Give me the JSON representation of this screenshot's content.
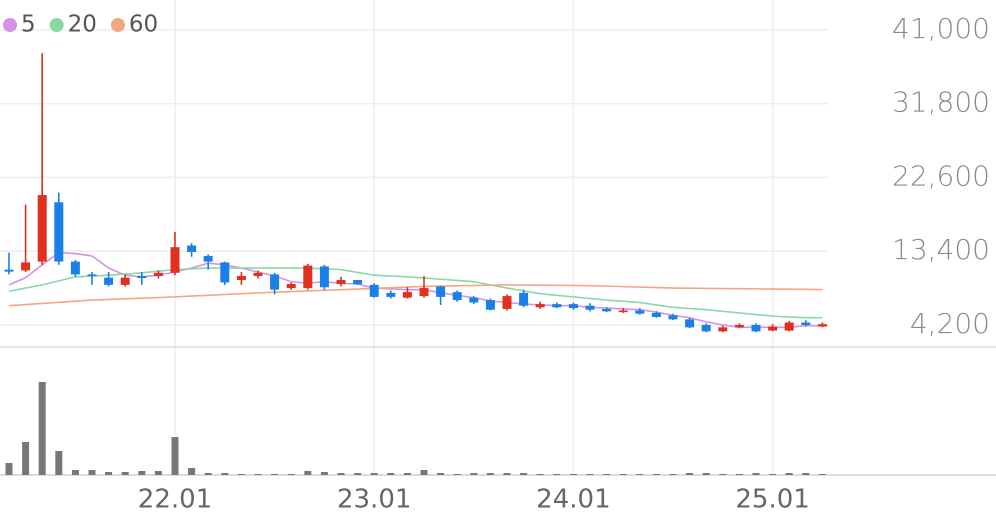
{
  "chart_data": {
    "type": "candlestick",
    "categories": [
      null,
      null,
      null,
      null,
      null,
      null,
      null,
      null,
      null,
      null,
      "22.01",
      null,
      null,
      null,
      null,
      null,
      null,
      null,
      null,
      null,
      null,
      null,
      "23.01",
      null,
      null,
      null,
      null,
      null,
      null,
      null,
      null,
      null,
      null,
      null,
      "24.01",
      null,
      null,
      null,
      null,
      null,
      null,
      null,
      null,
      null,
      null,
      null,
      "25.01",
      null,
      null,
      null
    ],
    "open": [
      11100,
      11000,
      12100,
      19500,
      12100,
      10500,
      10100,
      9200,
      10300,
      10300,
      10700,
      14100,
      12800,
      12000,
      9800,
      10300,
      10500,
      8800,
      8800,
      11500,
      9300,
      9800,
      9200,
      8200,
      7600,
      7800,
      9000,
      8300,
      7600,
      7300,
      6200,
      8200,
      6400,
      6800,
      6800,
      6600,
      6200,
      5800,
      6000,
      5700,
      5400,
      4900,
      4200,
      3400,
      3900,
      4200,
      3500,
      3500,
      4500,
      4000
    ],
    "high": [
      13200,
      19200,
      38100,
      20700,
      12300,
      10800,
      10800,
      10500,
      10800,
      11000,
      15800,
      14400,
      13000,
      12100,
      10800,
      11000,
      10700,
      9500,
      11800,
      11700,
      10200,
      9800,
      9400,
      8500,
      8900,
      10300,
      9100,
      8500,
      7800,
      7500,
      8000,
      8600,
      7100,
      7000,
      7000,
      6900,
      6400,
      6300,
      6300,
      5900,
      5600,
      5100,
      4400,
      4100,
      4400,
      4400,
      4300,
      4700,
      4800,
      4500
    ],
    "low": [
      10500,
      10800,
      11700,
      11700,
      10200,
      9200,
      9000,
      9000,
      9200,
      10000,
      10400,
      12700,
      11100,
      9200,
      9200,
      10000,
      8000,
      8600,
      8600,
      8600,
      9000,
      9200,
      7600,
      7500,
      7500,
      7600,
      6700,
      7100,
      6800,
      6000,
      6000,
      6400,
      6200,
      6300,
      6100,
      5900,
      5800,
      5700,
      5500,
      5100,
      4800,
      3800,
      3300,
      3300,
      3800,
      3300,
      3400,
      3400,
      4000,
      3900
    ],
    "close": [
      10850,
      12000,
      20400,
      12100,
      10500,
      10300,
      9200,
      10100,
      10050,
      10700,
      13900,
      13300,
      12100,
      9500,
      10300,
      10700,
      8600,
      9300,
      11600,
      8900,
      9800,
      9300,
      7700,
      7700,
      8300,
      8800,
      7700,
      7300,
      7000,
      6100,
      7800,
      6600,
      6800,
      6400,
      6300,
      6100,
      5900,
      6000,
      5600,
      5200,
      4900,
      3900,
      3400,
      3900,
      4200,
      3400,
      4000,
      4500,
      4200,
      4300
    ],
    "volume": [
      12,
      33,
      93,
      24,
      5,
      5,
      3,
      3,
      4,
      4,
      38,
      7,
      2,
      2,
      1,
      1,
      1,
      1,
      4,
      3,
      2,
      2,
      2,
      2,
      2,
      5,
      2,
      1,
      2,
      2,
      2,
      2,
      1,
      1,
      1,
      1,
      1,
      1,
      1,
      1,
      1,
      2,
      2,
      1,
      1,
      2,
      1,
      2,
      2,
      1
    ],
    "volume_ylim": [
      0,
      127
    ],
    "up_color": "#e0301e",
    "down_color": "#1a7fe6",
    "volume_color": "#777777",
    "series": [
      {
        "name": "5",
        "color": "#d691e8",
        "values": [
          9200,
          10100,
          11700,
          13200,
          13100,
          12800,
          11300,
          10400,
          10200,
          10400,
          10800,
          11300,
          11900,
          11700,
          11300,
          10800,
          10300,
          9600,
          9400,
          9600,
          9400,
          9300,
          8800,
          8700,
          8600,
          8600,
          8200,
          7900,
          7600,
          7200,
          7000,
          6800,
          6700,
          6600,
          6600,
          6400,
          6300,
          6200,
          6100,
          5800,
          5400,
          5100,
          4600,
          4200,
          3900,
          3900,
          3900,
          3900,
          4100,
          4100
        ]
      },
      {
        "name": "20",
        "color": "#86d9a4",
        "values": [
          8400,
          8800,
          9200,
          9700,
          10200,
          10300,
          10400,
          10550,
          10700,
          10900,
          11100,
          11200,
          11300,
          11300,
          11300,
          11300,
          11300,
          11300,
          11300,
          11200,
          11100,
          10750,
          10400,
          10300,
          10200,
          10050,
          9900,
          9750,
          9600,
          9200,
          8800,
          8450,
          8100,
          7900,
          7700,
          7500,
          7300,
          7150,
          7000,
          6700,
          6400,
          6250,
          6100,
          5900,
          5700,
          5500,
          5300,
          5200,
          5100,
          5100
        ]
      },
      {
        "name": "60",
        "color": "#f2a682",
        "values": [
          6600,
          6740,
          6880,
          7020,
          7160,
          7300,
          7380,
          7460,
          7540,
          7620,
          7700,
          7800,
          7900,
          8000,
          8100,
          8200,
          8280,
          8360,
          8440,
          8520,
          8600,
          8680,
          8760,
          8840,
          8920,
          9000,
          9040,
          9080,
          9120,
          9160,
          9200,
          9180,
          9160,
          9140,
          9120,
          9100,
          9040,
          8980,
          8920,
          8860,
          8800,
          8780,
          8760,
          8740,
          8720,
          8700,
          8680,
          8660,
          8640,
          8600
        ]
      }
    ],
    "ylim": [
      1450,
      44100
    ],
    "yticks": [
      {
        "value": 41000,
        "label": "41,000"
      },
      {
        "value": 31800,
        "label": "31,800"
      },
      {
        "value": 22600,
        "label": "22,600"
      },
      {
        "value": 13400,
        "label": "13,400"
      },
      {
        "value": 4200,
        "label": "4,200"
      }
    ],
    "grid": true
  }
}
